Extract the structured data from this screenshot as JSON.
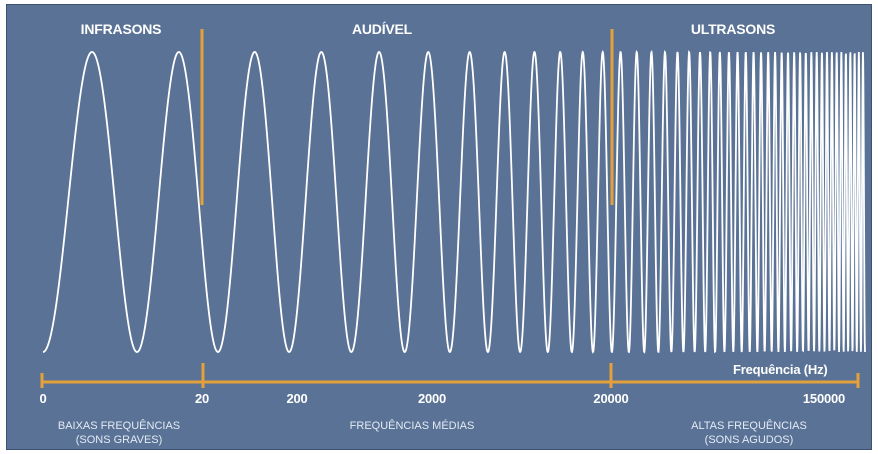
{
  "regions": {
    "infra": "INFRASONS",
    "audible": "AUDÍVEL",
    "ultra": "ULTRASONS"
  },
  "axis": {
    "label": "Frequência (Hz)",
    "ticks": [
      "0",
      "20",
      "200",
      "2000",
      "20000",
      "150000"
    ]
  },
  "bands": {
    "low": {
      "line1": "BAIXAS FREQUÊNCIAS",
      "line2": "(SONS GRAVES)"
    },
    "mid": {
      "line1": "FREQUÊNCIAS MÉDIAS"
    },
    "high": {
      "line1": "ALTAS FREQUÊNCIAS",
      "line2": "(SONS AGUDOS)"
    }
  },
  "colors": {
    "background": "#5a7295",
    "wave": "#ffffff",
    "accent": "#e3a03b"
  }
}
